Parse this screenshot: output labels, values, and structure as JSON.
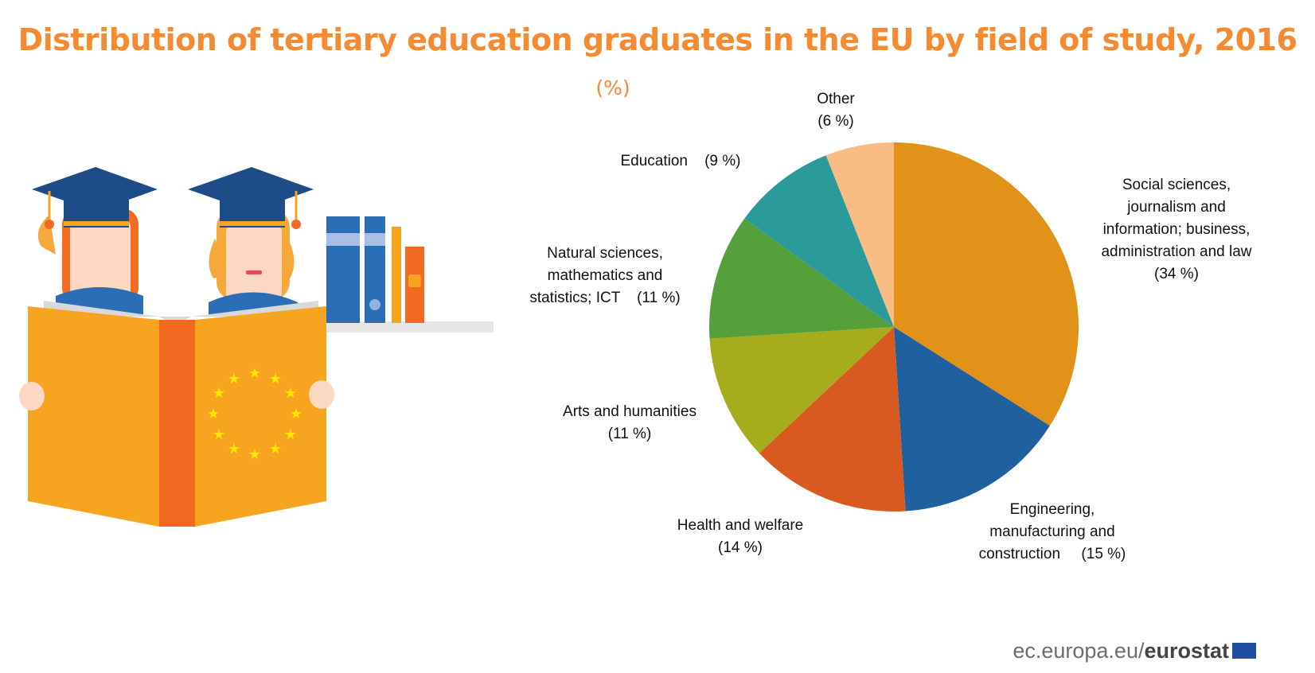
{
  "title": "Distribution of tertiary education graduates in the EU by field of study, 2016",
  "subtitle": "(%)",
  "colors": {
    "title": "#f58a30",
    "book": "#f7a521",
    "book_spine": "#f26a22",
    "cap": "#1e4c89",
    "shelf": "#e6e6e6"
  },
  "footer": {
    "site": "ec.europa.eu/",
    "brand": "eurostat"
  },
  "chart_data": {
    "type": "pie",
    "start_angle_deg": 0,
    "direction": "clockwise",
    "slices": [
      {
        "label_lines": [
          "Social sciences,",
          "journalism and",
          "information; business,",
          "administration and law",
          "(34 %)"
        ],
        "value": 34,
        "color": "#e09219"
      },
      {
        "label_lines": [
          "Engineering,",
          "manufacturing and",
          "construction     (15 %)"
        ],
        "value": 15,
        "color": "#20609e"
      },
      {
        "label_lines": [
          "Health and welfare",
          "(14 %)"
        ],
        "value": 14,
        "color": "#d85a21"
      },
      {
        "label_lines": [
          "Arts and humanities",
          "(11 %)"
        ],
        "value": 11,
        "color": "#a6ac1c"
      },
      {
        "label_lines": [
          "Natural sciences,",
          "mathematics and",
          "statistics; ICT    (11 %)"
        ],
        "value": 11,
        "color": "#55a03a"
      },
      {
        "label_lines": [
          "Education    (9 %)"
        ],
        "value": 9,
        "color": "#2a9a9a"
      },
      {
        "label_lines": [
          "Other",
          "(6 %)"
        ],
        "value": 6,
        "color": "#f9bd84"
      }
    ]
  }
}
